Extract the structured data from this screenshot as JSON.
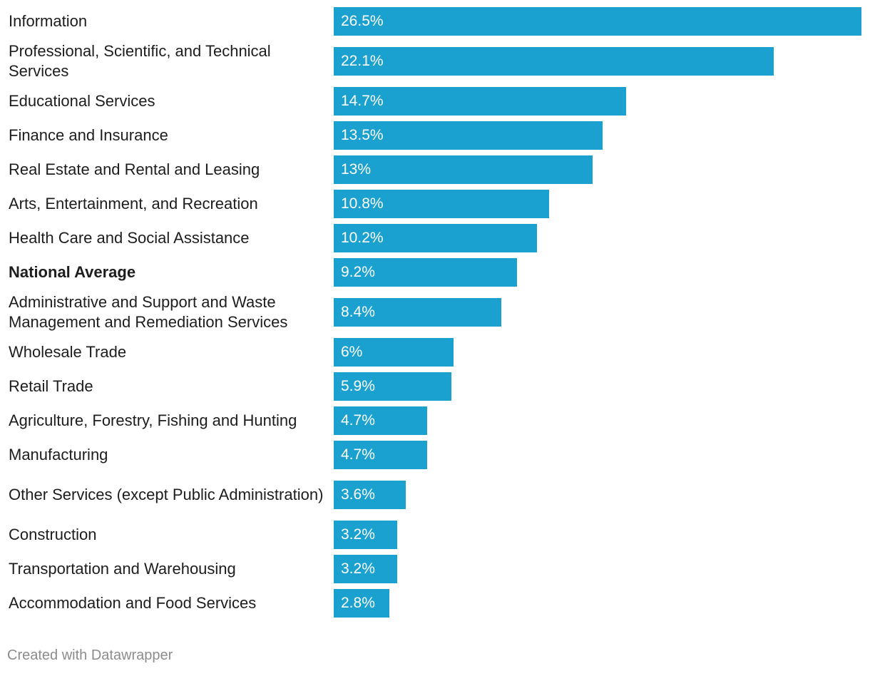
{
  "chart_data": {
    "type": "bar",
    "orientation": "horizontal",
    "categories": [
      "Information",
      "Professional, Scientific, and Technical Services",
      "Educational Services",
      "Finance and Insurance",
      "Real Estate and Rental and Leasing",
      "Arts, Entertainment, and Recreation",
      "Health Care and Social Assistance",
      "National Average",
      "Administrative and Support and Waste Management and Remediation Services",
      "Wholesale Trade",
      "Retail Trade",
      "Agriculture, Forestry, Fishing and Hunting",
      "Manufacturing",
      "Other Services (except Public Administration)",
      "Construction",
      "Transportation and Warehousing",
      "Accommodation and Food Services"
    ],
    "values": [
      26.5,
      22.1,
      14.7,
      13.5,
      13,
      10.8,
      10.2,
      9.2,
      8.4,
      6,
      5.9,
      4.7,
      4.7,
      3.6,
      3.2,
      3.2,
      2.8
    ],
    "value_labels": [
      "26.5%",
      "22.1%",
      "14.7%",
      "13.5%",
      "13%",
      "10.8%",
      "10.2%",
      "9.2%",
      "8.4%",
      "6%",
      "5.9%",
      "4.7%",
      "4.7%",
      "3.6%",
      "3.2%",
      "3.2%",
      "2.8%"
    ],
    "highlighted_category": "National Average",
    "bar_color": "#1aa1cf",
    "xlim": [
      0,
      26.5
    ],
    "grid": false,
    "legend": "none"
  },
  "credit": "Created with Datawrapper"
}
